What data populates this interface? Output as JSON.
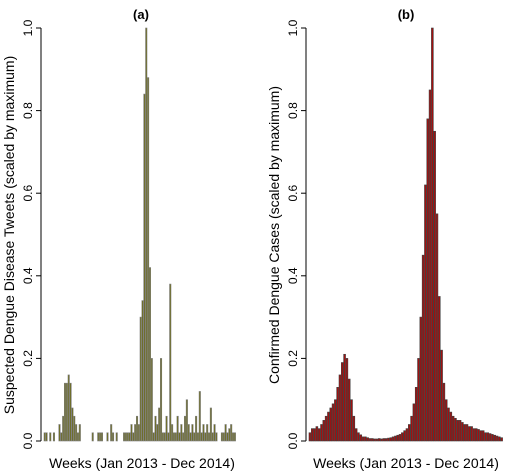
{
  "chart_data": [
    {
      "type": "bar",
      "title": "(a)",
      "xlabel": "Weeks (Jan 2013 - Dec 2014)",
      "ylabel": "Suspected Dengue Disease Tweets (scaled by maximum)",
      "ylim": [
        0,
        1
      ],
      "yticks": [
        "0.0",
        "0.2",
        "0.4",
        "0.6",
        "0.8",
        "1.0"
      ],
      "bar_color": "#6b6b1e",
      "bar_edge": "#808080",
      "grid": false,
      "values": [
        0.02,
        0.02,
        0,
        0.02,
        0,
        0.02,
        0,
        0,
        0.04,
        0.02,
        0.06,
        0.14,
        0.14,
        0.16,
        0.14,
        0.08,
        0.06,
        0.04,
        0.02,
        0.04,
        0,
        0,
        0,
        0,
        0,
        0,
        0.02,
        0,
        0,
        0.02,
        0.02,
        0.02,
        0,
        0,
        0.02,
        0,
        0.04,
        0.02,
        0,
        0.02,
        0,
        0,
        0,
        0.02,
        0.02,
        0.02,
        0.02,
        0.04,
        0.02,
        0.04,
        0.06,
        0.04,
        0.3,
        0.34,
        0.84,
        1.0,
        0.88,
        0.42,
        0.2,
        0.02,
        0.06,
        0.04,
        0.08,
        0.2,
        0.02,
        0.02,
        0.06,
        0.02,
        0.38,
        0.04,
        0.02,
        0.02,
        0.06,
        0.02,
        0.04,
        0.02,
        0.06,
        0.1,
        0.04,
        0.02,
        0.04,
        0.02,
        0.06,
        0.02,
        0.12,
        0.02,
        0.04,
        0.02,
        0.04,
        0.02,
        0.08,
        0.02,
        0.04,
        0.02,
        0,
        0,
        0.02,
        0.02,
        0.04,
        0.02,
        0.03,
        0.04,
        0.02,
        0.02
      ]
    },
    {
      "type": "bar",
      "title": "(b)",
      "xlabel": "Weeks (Jan 2013 - Dec 2014)",
      "ylabel": "Confirmed Dengue Cases (scaled by maximum)",
      "ylim": [
        0,
        1
      ],
      "yticks": [
        "0.0",
        "0.2",
        "0.4",
        "0.6",
        "0.8",
        "1.0"
      ],
      "bar_color": "#a01010",
      "bar_edge": "#404040",
      "grid": false,
      "values": [
        0.02,
        0.03,
        0.03,
        0.035,
        0.03,
        0.04,
        0.05,
        0.06,
        0.07,
        0.08,
        0.09,
        0.1,
        0.13,
        0.16,
        0.19,
        0.21,
        0.2,
        0.15,
        0.1,
        0.06,
        0.03,
        0.02,
        0.015,
        0.01,
        0.01,
        0.008,
        0.006,
        0.006,
        0.005,
        0.005,
        0.006,
        0.005,
        0.006,
        0.006,
        0.007,
        0.008,
        0.01,
        0.012,
        0.014,
        0.016,
        0.02,
        0.025,
        0.03,
        0.04,
        0.06,
        0.09,
        0.13,
        0.2,
        0.3,
        0.45,
        0.62,
        0.78,
        0.85,
        1.0,
        0.75,
        0.55,
        0.35,
        0.22,
        0.14,
        0.1,
        0.08,
        0.07,
        0.06,
        0.055,
        0.05,
        0.05,
        0.045,
        0.04,
        0.04,
        0.035,
        0.035,
        0.03,
        0.03,
        0.028,
        0.025,
        0.025,
        0.02,
        0.02,
        0.018,
        0.016,
        0.014,
        0.012,
        0.01,
        0.008
      ]
    }
  ]
}
